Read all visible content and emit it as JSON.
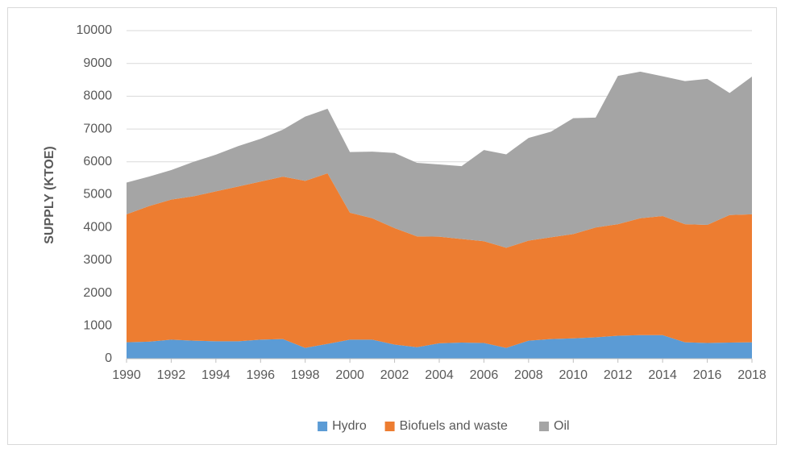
{
  "chart_data": {
    "type": "stacked_area",
    "y_label": "SUPPLY (KTOE)",
    "x": [
      1990,
      1991,
      1992,
      1993,
      1994,
      1995,
      1996,
      1997,
      1998,
      1999,
      2000,
      2001,
      2002,
      2003,
      2004,
      2005,
      2006,
      2007,
      2008,
      2009,
      2010,
      2011,
      2012,
      2013,
      2014,
      2015,
      2016,
      2017,
      2018
    ],
    "series": [
      {
        "name": "Hydro",
        "color": "#5b9bd5",
        "values": [
          500,
          520,
          580,
          550,
          530,
          530,
          580,
          600,
          330,
          450,
          580,
          580,
          430,
          350,
          470,
          490,
          480,
          330,
          550,
          600,
          620,
          650,
          700,
          720,
          720,
          500,
          480,
          490,
          500
        ]
      },
      {
        "name": "Biofuels and waste",
        "color": "#ed7d31",
        "values": [
          3900,
          4130,
          4270,
          4400,
          4570,
          4720,
          4820,
          4950,
          5090,
          5200,
          3870,
          3700,
          3550,
          3380,
          3250,
          3160,
          3100,
          3050,
          3050,
          3100,
          3180,
          3350,
          3400,
          3560,
          3630,
          3600,
          3600,
          3890,
          3900
        ]
      },
      {
        "name": "Oil",
        "color": "#a5a5a5",
        "values": [
          970,
          900,
          900,
          1050,
          1120,
          1230,
          1300,
          1430,
          1960,
          1970,
          1850,
          2030,
          2290,
          2240,
          2200,
          2220,
          2780,
          2850,
          3130,
          3220,
          3530,
          3350,
          4520,
          4470,
          4260,
          4360,
          4450,
          3720,
          4200
        ]
      }
    ],
    "xlim": [
      1990,
      2018
    ],
    "xticks": [
      1990,
      1992,
      1994,
      1996,
      1998,
      2000,
      2002,
      2004,
      2006,
      2008,
      2010,
      2012,
      2014,
      2016,
      2018
    ],
    "ylim": [
      0,
      10000
    ],
    "yticks": [
      0,
      1000,
      2000,
      3000,
      4000,
      5000,
      6000,
      7000,
      8000,
      9000,
      10000
    ],
    "grid": true,
    "legend": "bottom"
  }
}
